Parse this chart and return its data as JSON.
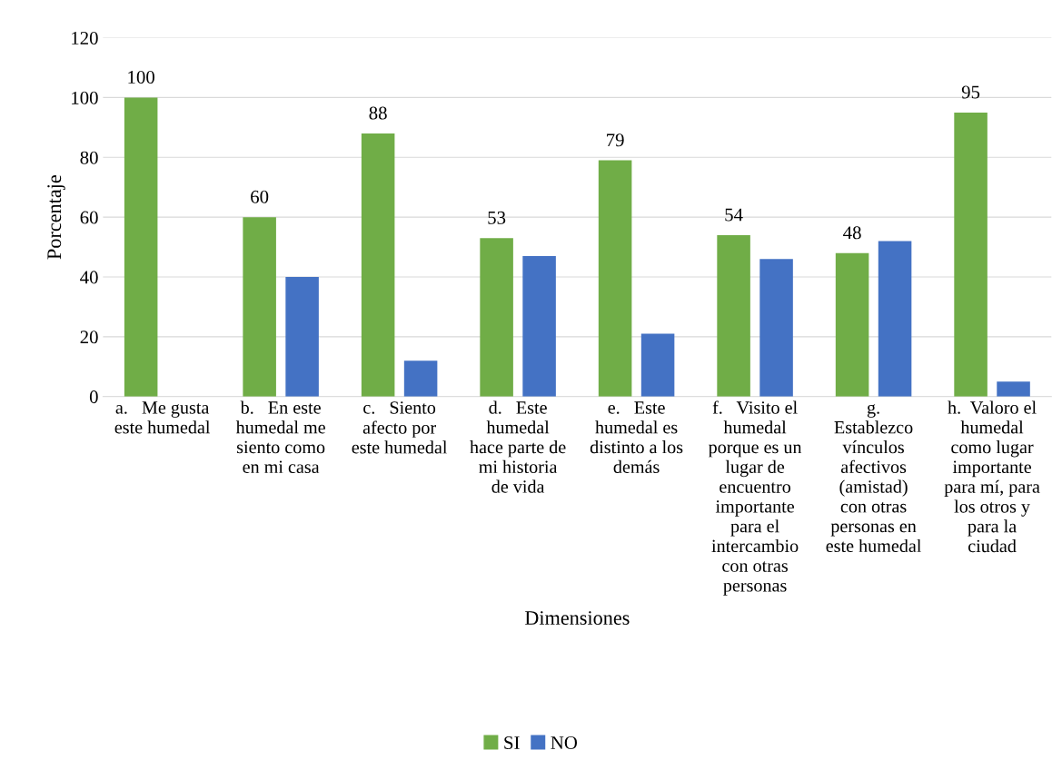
{
  "chart_data": {
    "type": "bar",
    "xlabel": "Dimensiones",
    "ylabel": "Porcentaje",
    "categories": [
      "a.   Me gusta\neste humedal",
      "b.   En este\nhumedal me\nsiento como\nen mi casa",
      "c.   Siento\nafecto por\neste humedal",
      "d.   Este\nhumedal\nhace parte de\nmi historia\nde vida",
      "e.   Este\nhumedal es\ndistinto a los\ndemás",
      "f.   Visito el\nhumedal\nporque es un\nlugar de\nencuentro\nimportante\npara el\nintercambio\ncon otras\npersonas",
      "g.\nEstablezco\nvínculos\nafectivos\n(amistad)\ncon otras\npersonas en\neste humedal",
      "h.  Valoro el\nhumedal\ncomo lugar\nimportante\npara mí, para\nlos otros y\npara la\nciudad"
    ],
    "series": [
      {
        "name": "SI",
        "color": "#70ad47",
        "values": [
          100,
          60,
          88,
          53,
          79,
          54,
          48,
          95
        ],
        "value_labels": [
          "100",
          "60",
          "88",
          "53",
          "79",
          "54",
          "48",
          "95"
        ]
      },
      {
        "name": "NO",
        "color": "#4472c4",
        "values": [
          0,
          40,
          12,
          47,
          21,
          46,
          52,
          5
        ]
      }
    ],
    "ylim": [
      0,
      120
    ],
    "yticks": [
      0,
      20,
      40,
      60,
      80,
      100,
      120
    ],
    "grid": "y",
    "legend": "bottom"
  }
}
